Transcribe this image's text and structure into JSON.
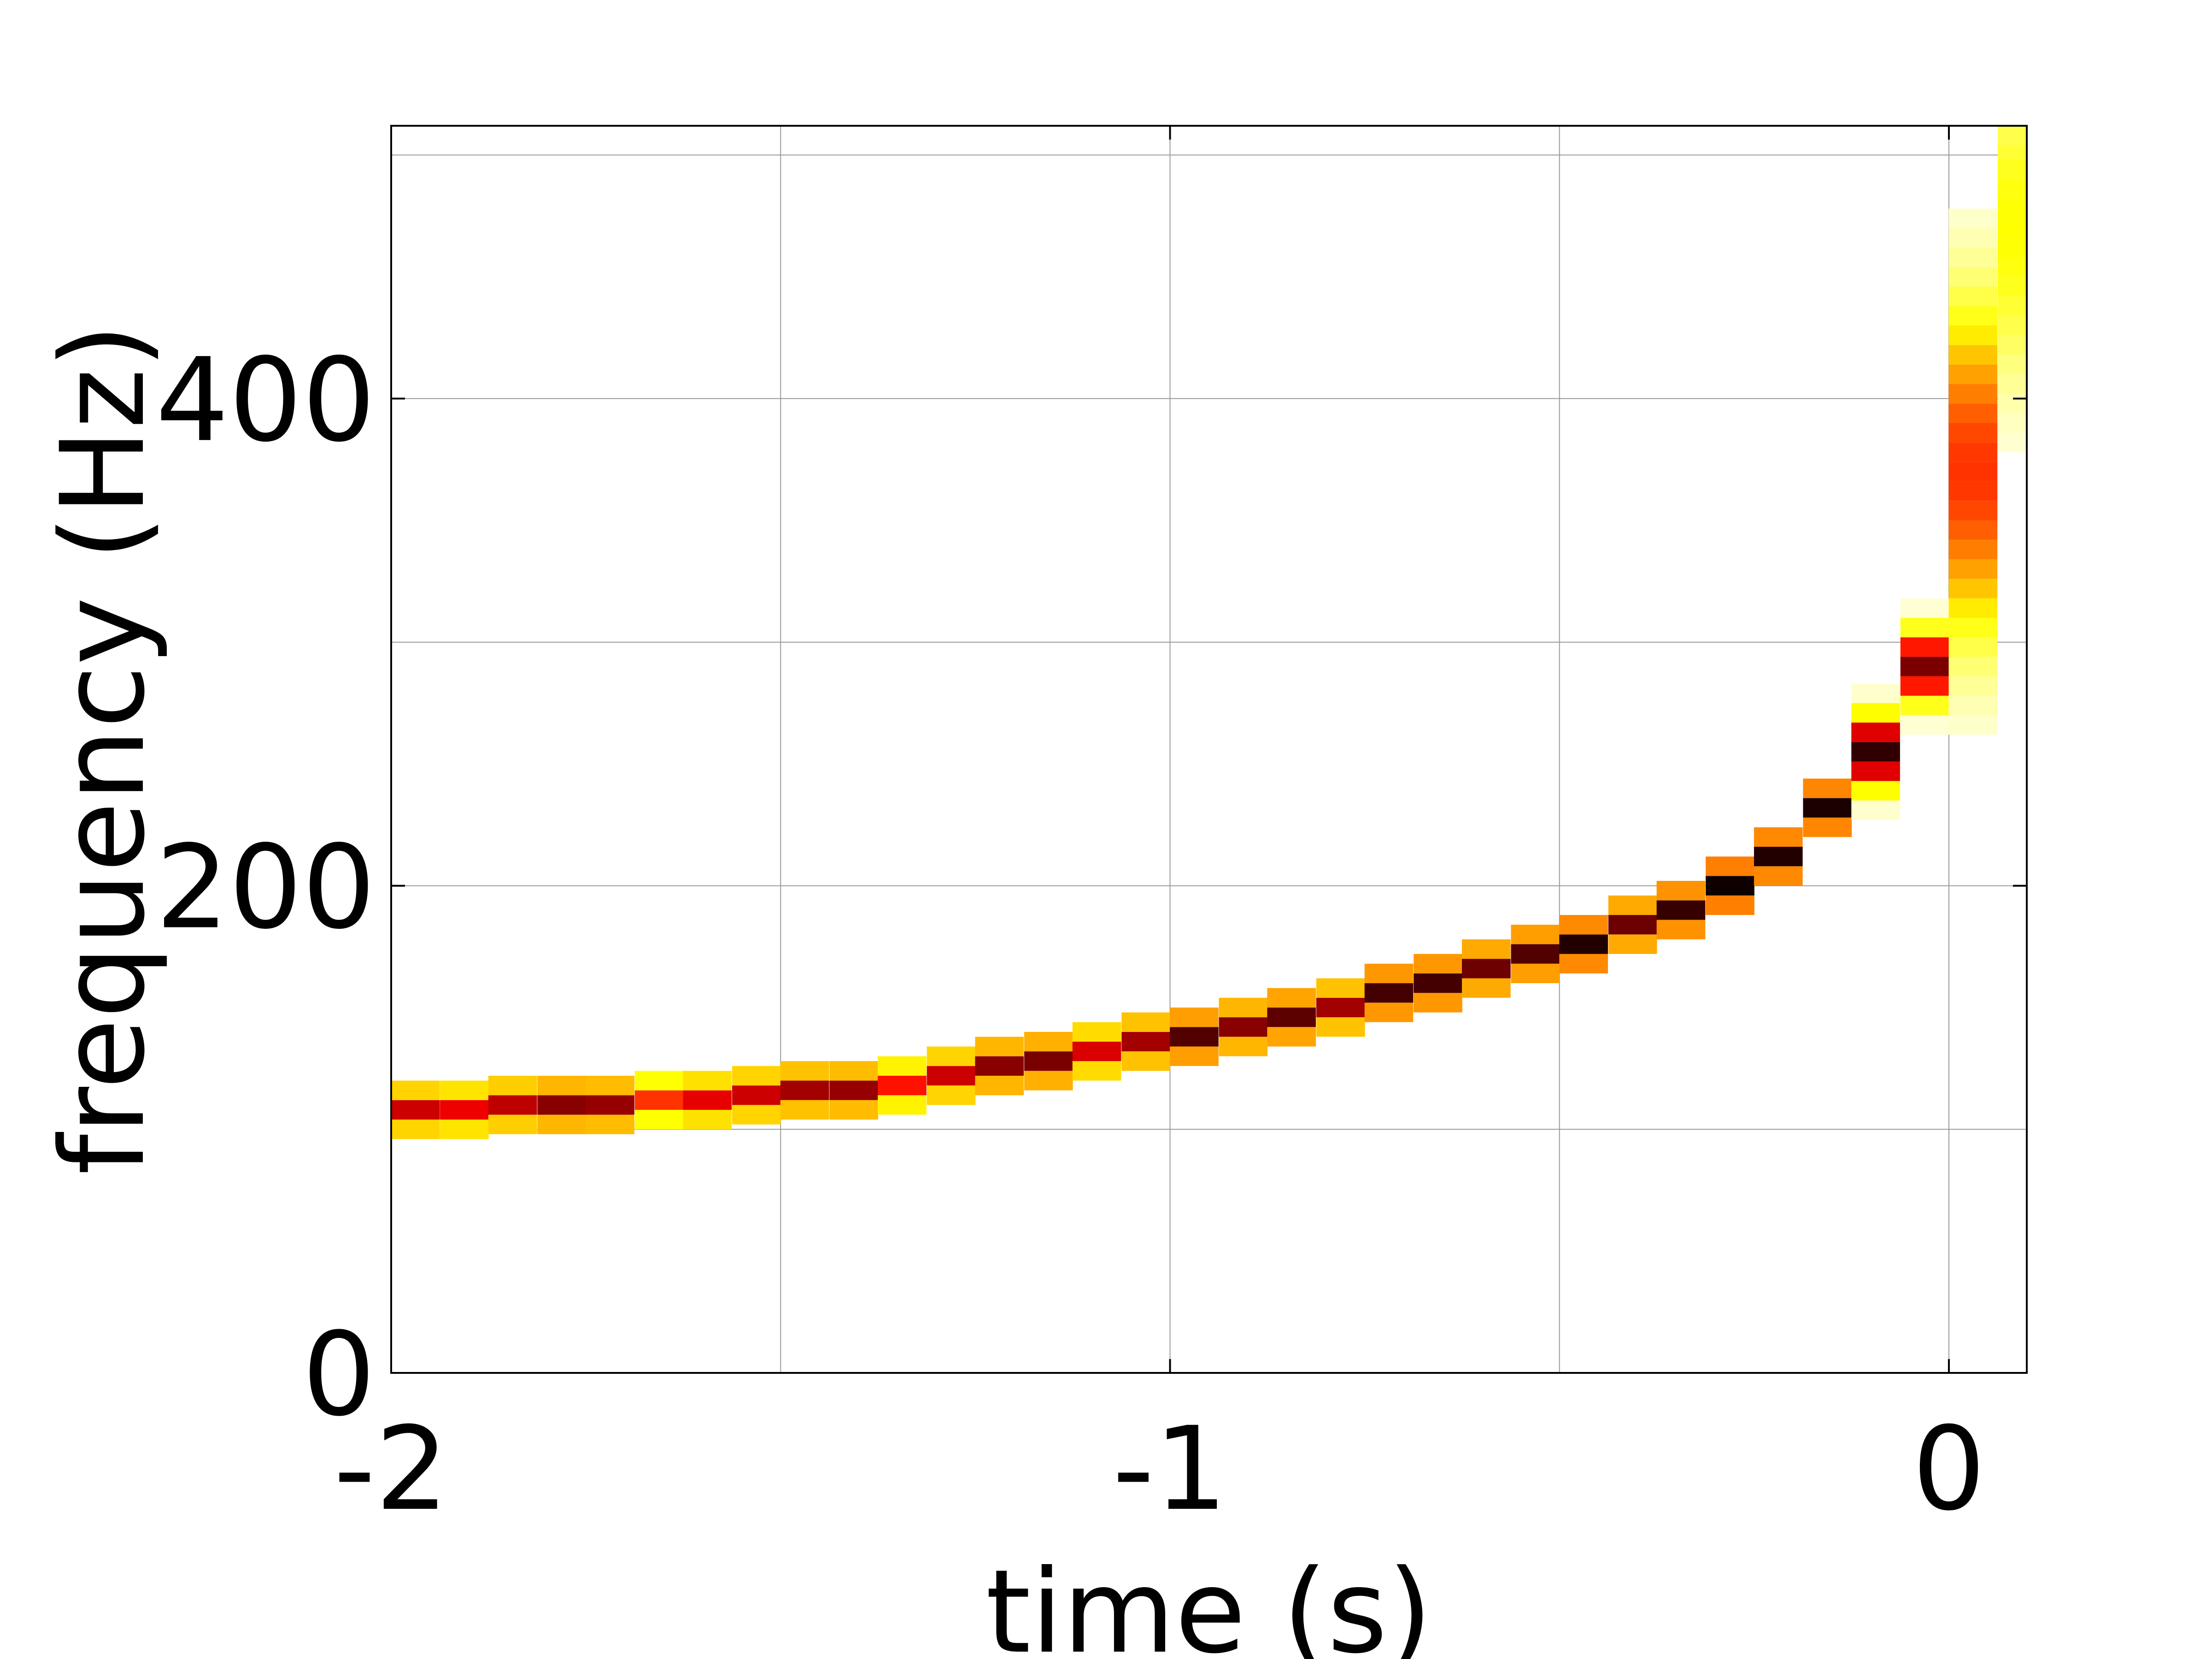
{
  "chart_data": {
    "type": "heatmap",
    "title": "",
    "xlabel": "time (s)",
    "ylabel": "frequency (Hz)",
    "xlim": [
      -2,
      0.1
    ],
    "ylim": [
      0,
      512
    ],
    "xticks": [
      -2,
      -1,
      0
    ],
    "yticks": [
      0,
      200,
      400
    ],
    "xtick_labels": [
      "-2",
      "-1",
      "0"
    ],
    "ytick_labels": [
      "0",
      "200",
      "400"
    ],
    "x_gridlines": [
      -2,
      -1.5,
      -1,
      -0.5,
      0
    ],
    "y_gridlines": [
      0,
      100,
      200,
      300,
      400,
      500
    ],
    "grid": true,
    "colormap": "hot",
    "colors": {
      "axis": "#000000",
      "grid": "#9a9a9a",
      "background": "#ffffff"
    },
    "time_bin": 0.0625,
    "frequency_bin": 8,
    "chirp_track": [
      {
        "t": -1.969,
        "f": 108,
        "i": 0.7
      },
      {
        "t": -1.906,
        "f": 108,
        "i": 0.65
      },
      {
        "t": -1.844,
        "f": 110,
        "i": 0.72
      },
      {
        "t": -1.781,
        "f": 110,
        "i": 0.8
      },
      {
        "t": -1.719,
        "f": 110,
        "i": 0.78
      },
      {
        "t": -1.656,
        "f": 112,
        "i": 0.55
      },
      {
        "t": -1.594,
        "f": 112,
        "i": 0.66
      },
      {
        "t": -1.531,
        "f": 114,
        "i": 0.7
      },
      {
        "t": -1.469,
        "f": 116,
        "i": 0.76
      },
      {
        "t": -1.406,
        "f": 116,
        "i": 0.78
      },
      {
        "t": -1.344,
        "f": 118,
        "i": 0.6
      },
      {
        "t": -1.281,
        "f": 122,
        "i": 0.7
      },
      {
        "t": -1.219,
        "f": 126,
        "i": 0.8
      },
      {
        "t": -1.156,
        "f": 128,
        "i": 0.82
      },
      {
        "t": -1.094,
        "f": 132,
        "i": 0.68
      },
      {
        "t": -1.031,
        "f": 136,
        "i": 0.76
      },
      {
        "t": -0.969,
        "f": 138,
        "i": 0.88
      },
      {
        "t": -0.906,
        "f": 142,
        "i": 0.8
      },
      {
        "t": -0.844,
        "f": 146,
        "i": 0.86
      },
      {
        "t": -0.781,
        "f": 150,
        "i": 0.76
      },
      {
        "t": -0.719,
        "f": 156,
        "i": 0.9
      },
      {
        "t": -0.656,
        "f": 160,
        "i": 0.9
      },
      {
        "t": -0.594,
        "f": 166,
        "i": 0.84
      },
      {
        "t": -0.531,
        "f": 172,
        "i": 0.88
      },
      {
        "t": -0.469,
        "f": 176,
        "i": 0.95
      },
      {
        "t": -0.406,
        "f": 184,
        "i": 0.84
      },
      {
        "t": -0.344,
        "f": 190,
        "i": 0.92
      },
      {
        "t": -0.281,
        "f": 200,
        "i": 0.98
      },
      {
        "t": -0.219,
        "f": 212,
        "i": 0.95
      },
      {
        "t": -0.156,
        "f": 232,
        "i": 0.96
      },
      {
        "t": -0.094,
        "f": 255,
        "i": 0.93
      },
      {
        "t": -0.031,
        "f": 290,
        "i": 0.82
      },
      {
        "t": 0.031,
        "f": 370,
        "i": 0.55
      },
      {
        "t": 0.094,
        "f": 470,
        "i": 0.25
      }
    ]
  }
}
